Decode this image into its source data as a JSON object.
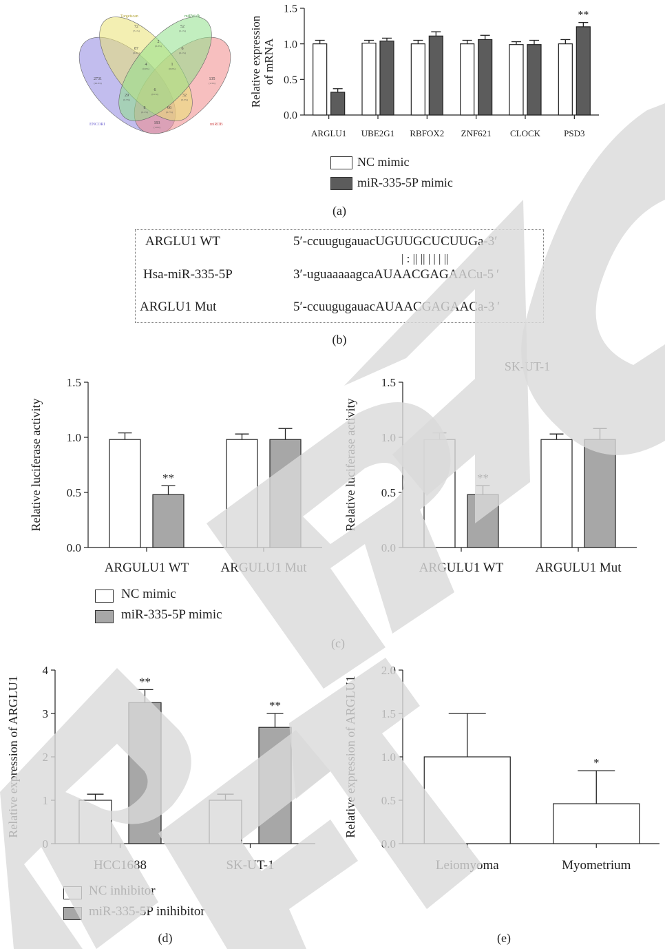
{
  "panels": {
    "a": "(a)",
    "b": "(b)",
    "c": "(c)",
    "d": "(d)",
    "e": "(e)"
  },
  "venn": {
    "set_labels": [
      "Targetscan",
      "miRWalk",
      "ENCORI",
      "miRDB"
    ],
    "regions": [
      {
        "count": "72",
        "pct": "(7.1%)"
      },
      {
        "count": "52",
        "pct": "(5.1%)"
      },
      {
        "count": "2731",
        "pct": "(26.9%)"
      },
      {
        "count": "135",
        "pct": "(1.3%)"
      },
      {
        "count": "87",
        "pct": "(0.9%)"
      },
      {
        "count": "2",
        "pct": "(0.0%)"
      },
      {
        "count": "6",
        "pct": "(0.1%)"
      },
      {
        "count": "4",
        "pct": "(0.0%)"
      },
      {
        "count": "1",
        "pct": "(0.0%)"
      },
      {
        "count": "29",
        "pct": "(0.3%)"
      },
      {
        "count": "6",
        "pct": "(0.1%)"
      },
      {
        "count": "32",
        "pct": "(0.3%)"
      },
      {
        "count": "8",
        "pct": "(0.1%)"
      },
      {
        "count": "66",
        "pct": "(0.7%)"
      },
      {
        "count": "193",
        "pct": "(1.9%)"
      }
    ],
    "colors": [
      "#e9e173",
      "#8fe08a",
      "#8f86e0",
      "#f08a8a"
    ]
  },
  "sequence": {
    "rows": [
      {
        "name": "ARGLU1 WT",
        "seq": "5′-ccuugugauacUGUUGCUCUUGa-3′"
      },
      {
        "name": "Hsa-miR-335-5P",
        "seq": "3′-uguaaaaagcaAUAACGAGAACu-5 ′"
      },
      {
        "name": "ARGLU1 Mut",
        "seq": "5′-ccuugugauacAUAACGAGAACa-3 ′"
      }
    ],
    "pairing": "|  :  ||  ||  |  |  |  ||"
  },
  "legends": {
    "mimic": [
      "NC mimic",
      "miR-335-5P mimic"
    ],
    "inhibitor": [
      "NC inhibitor",
      "miR-335-5P inihibitor"
    ]
  },
  "colors": {
    "white_bar": "#ffffff",
    "dark_gray": "#5c5c5c",
    "mid_gray": "#a7a7a7",
    "gray_e": "#9c9c9c",
    "watermark": "#d9d9d9"
  },
  "chart_data": [
    {
      "id": "a",
      "type": "bar",
      "ylabel": "Relative expression of mRNA",
      "ylim": [
        0,
        1.5
      ],
      "yticks": [
        "0.0",
        "0.5",
        "1.0",
        "1.5"
      ],
      "categories": [
        "ARGLU1",
        "UBE2G1",
        "RBFOX2",
        "ZNF621",
        "CLOCK",
        "PSD3"
      ],
      "series": [
        {
          "name": "NC mimic",
          "values": [
            1.0,
            1.01,
            1.0,
            1.0,
            0.99,
            1.0
          ],
          "errors": [
            0.05,
            0.04,
            0.05,
            0.05,
            0.04,
            0.06
          ]
        },
        {
          "name": "miR-335-5P mimic",
          "values": [
            0.32,
            1.04,
            1.11,
            1.06,
            0.99,
            1.24
          ],
          "errors": [
            0.05,
            0.04,
            0.06,
            0.06,
            0.06,
            0.06
          ]
        }
      ],
      "annotations": [
        {
          "category": "PSD3",
          "series": 1,
          "text": "**"
        }
      ]
    },
    {
      "id": "c-left",
      "type": "bar",
      "ylabel": "Relative luciferase activity",
      "ylim": [
        0,
        1.5
      ],
      "yticks": [
        "0.0",
        "0.5",
        "1.0",
        "1.5"
      ],
      "categories": [
        "ARGULU1 WT",
        "ARGULU1 Mut"
      ],
      "series": [
        {
          "name": "NC mimic",
          "values": [
            0.98,
            0.98
          ],
          "errors": [
            0.06,
            0.05
          ]
        },
        {
          "name": "miR-335-5P mimic",
          "values": [
            0.48,
            0.98
          ],
          "errors": [
            0.08,
            0.1
          ]
        }
      ],
      "annotations": [
        {
          "category": "ARGULU1 WT",
          "series": 1,
          "text": "**"
        }
      ]
    },
    {
      "id": "c-right",
      "type": "bar",
      "title": "SK-UT-1",
      "ylabel": "Relative luciferase activity",
      "ylim": [
        0,
        1.5
      ],
      "yticks": [
        "0.0",
        "0.5",
        "1.0",
        "1.5"
      ],
      "categories": [
        "ARGULU1 WT",
        "ARGULU1 Mut"
      ],
      "series": [
        {
          "name": "NC mimic",
          "values": [
            0.98,
            0.98
          ],
          "errors": [
            0.06,
            0.05
          ]
        },
        {
          "name": "miR-335-5P mimic",
          "values": [
            0.48,
            0.98
          ],
          "errors": [
            0.08,
            0.1
          ]
        }
      ],
      "annotations": [
        {
          "category": "ARGULU1 WT",
          "series": 1,
          "text": "**"
        }
      ]
    },
    {
      "id": "d",
      "type": "bar",
      "ylabel": "Relative expression of ARGLU1",
      "ylim": [
        0,
        4
      ],
      "yticks": [
        "0",
        "1",
        "2",
        "3",
        "4"
      ],
      "categories": [
        "HCC1688",
        "SK-UT-1"
      ],
      "series": [
        {
          "name": "NC inhibitor",
          "values": [
            1.0,
            1.0
          ],
          "errors": [
            0.14,
            0.14
          ]
        },
        {
          "name": "miR-335-5P inihibitor",
          "values": [
            3.25,
            2.68
          ],
          "errors": [
            0.3,
            0.32
          ]
        }
      ],
      "annotations": [
        {
          "category": "HCC1688",
          "series": 1,
          "text": "**"
        },
        {
          "category": "SK-UT-1",
          "series": 1,
          "text": "**"
        }
      ]
    },
    {
      "id": "e",
      "type": "bar",
      "ylabel": "Relative expression of ARGLU1",
      "ylim": [
        0,
        2.0
      ],
      "yticks": [
        "0.0",
        "0.5",
        "1.0",
        "1.5",
        "2.0"
      ],
      "categories": [
        "Leiomyoma",
        "Myometrium"
      ],
      "values": [
        1.0,
        0.46
      ],
      "errors": [
        0.5,
        0.38
      ],
      "annotations": [
        {
          "category": "Myometrium",
          "text": "*"
        }
      ]
    }
  ]
}
